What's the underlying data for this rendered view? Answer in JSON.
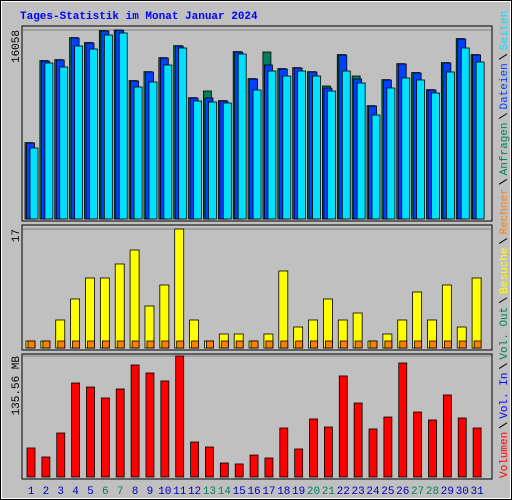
{
  "chart_data": [
    {
      "type": "bar",
      "title": "Tages-Statistik im Monat Januar 2024",
      "ylim": [
        0,
        16058
      ],
      "yticks": [
        16058
      ],
      "grid": true,
      "series": [
        {
          "name": "Anfragen",
          "color": "#00805c",
          "values": [
            6490,
            13460,
            13540,
            15410,
            14990,
            16000,
            16058,
            11760,
            12520,
            13710,
            14730,
            10310,
            10875,
            10060,
            14220,
            11930,
            14188,
            12780,
            12860,
            12520,
            11300,
            13970,
            12149,
            9630,
            11840,
            13200,
            12440,
            10990,
            13290,
            15330,
            13970
          ]
        },
        {
          "name": "Dateien",
          "color": "#0040ff",
          "values": [
            6457,
            13424,
            13509,
            15378,
            14953,
            15972,
            16028,
            11725,
            12489,
            13679,
            14698,
            10280,
            10280,
            10025,
            14188,
            11894,
            13084,
            12744,
            12829,
            12489,
            11130,
            13933,
            11894,
            9600,
            11809,
            13169,
            12404,
            10960,
            13254,
            15293,
            13933
          ]
        },
        {
          "name": "Seiten",
          "color": "#00e0ff",
          "values": [
            6032,
            13254,
            12914,
            14698,
            14443,
            15633,
            15803,
            11215,
            11640,
            13084,
            14528,
            10025,
            9940,
            9855,
            14018,
            10960,
            12574,
            12149,
            12574,
            12149,
            10875,
            12574,
            11555,
            8836,
            11130,
            11979,
            11809,
            10705,
            12489,
            14528,
            13339
          ]
        }
      ]
    },
    {
      "type": "bar",
      "ylim": [
        0,
        17
      ],
      "yticks": [
        17
      ],
      "grid": true,
      "series": [
        {
          "name": "Besuche",
          "color": "#ffff00",
          "values": [
            1,
            1,
            4,
            7,
            10,
            10,
            12,
            14,
            6,
            9,
            17,
            4,
            1,
            2,
            2,
            1,
            2,
            11,
            3,
            4,
            7,
            4,
            5,
            1,
            2,
            4,
            8,
            4,
            9,
            3,
            10
          ]
        },
        {
          "name": "Rechner",
          "color": "#ff8000",
          "values": [
            1,
            1,
            1,
            1,
            1,
            1,
            1,
            1,
            1,
            1,
            1,
            1,
            1,
            1,
            1,
            1,
            1,
            1,
            1,
            1,
            1,
            1,
            1,
            1,
            1,
            1,
            1,
            1,
            1,
            1,
            1
          ]
        }
      ]
    },
    {
      "type": "bar",
      "ylim": [
        0,
        135.56
      ],
      "yticks": [
        {
          "value": 135.56,
          "label": "135.56 MB"
        }
      ],
      "grid": true,
      "categories": [
        "1",
        "2",
        "3",
        "4",
        "5",
        "6",
        "7",
        "8",
        "9",
        "10",
        "11",
        "12",
        "13",
        "14",
        "15",
        "16",
        "17",
        "18",
        "19",
        "20",
        "21",
        "22",
        "23",
        "24",
        "25",
        "26",
        "27",
        "28",
        "29",
        "30",
        "31"
      ],
      "category_colors": [
        "#0000c0",
        "#0000c0",
        "#0000c0",
        "#0000c0",
        "#0000c0",
        "#00805c",
        "#00805c",
        "#0000c0",
        "#0000c0",
        "#0000c0",
        "#0000c0",
        "#0000c0",
        "#00805c",
        "#00805c",
        "#0000c0",
        "#0000c0",
        "#0000c0",
        "#0000c0",
        "#0000c0",
        "#00805c",
        "#00805c",
        "#0000c0",
        "#0000c0",
        "#0000c0",
        "#0000c0",
        "#0000c0",
        "#00805c",
        "#00805c",
        "#0000c0",
        "#0000c0",
        "#0000c0"
      ],
      "series": [
        {
          "name": "Volumen",
          "color": "#ff0000",
          "values": [
            32.5,
            22.4,
            49.3,
            105.3,
            100.8,
            88.5,
            98.6,
            125.5,
            116.5,
            107.6,
            135.56,
            39.2,
            33.6,
            15.7,
            14.6,
            24.6,
            21.3,
            54.9,
            31.4,
            65.0,
            56.0,
            113.2,
            82.9,
            53.8,
            67.2,
            127.7,
            72.8,
            63.9,
            91.9,
            66.1,
            54.9
          ]
        },
        {
          "name": "Vol. In",
          "color": "#0000ff",
          "values": [
            0,
            0,
            0,
            0,
            0,
            0,
            0,
            0,
            0,
            0,
            0,
            0,
            0,
            0,
            0,
            0,
            0,
            0,
            0,
            0,
            0,
            0,
            0,
            0,
            0,
            0,
            0,
            0,
            0,
            0,
            0
          ]
        },
        {
          "name": "Vol. Out",
          "color": "#00805c",
          "values": [
            0,
            0,
            0,
            0,
            0,
            0,
            0,
            0,
            0,
            0,
            0,
            0,
            0,
            0,
            0,
            0,
            0,
            0,
            0,
            0,
            0,
            0,
            0,
            0,
            0,
            0,
            0,
            0,
            0,
            0,
            0
          ]
        }
      ]
    }
  ]
}
